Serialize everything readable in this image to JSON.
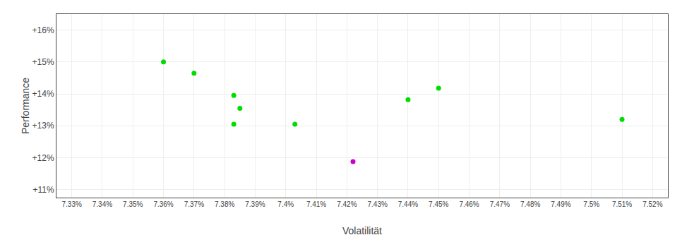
{
  "chart_data": {
    "type": "scatter",
    "xlabel": "Volatilität",
    "ylabel": "Performance",
    "series": [
      {
        "color": "#00dd00",
        "x": [
          7.36,
          7.37,
          7.383,
          7.385,
          7.383,
          7.403,
          7.44,
          7.45,
          7.51
        ],
        "values": [
          15.0,
          14.65,
          13.95,
          13.55,
          13.05,
          13.05,
          13.82,
          14.18,
          13.2
        ]
      },
      {
        "color": "#cc00cc",
        "x": [
          7.422
        ],
        "values": [
          11.88
        ]
      }
    ],
    "xlim": [
      7.325,
      7.525
    ],
    "ylim": [
      10.75,
      16.5
    ],
    "xticks": [
      {
        "value": 7.33,
        "label": "7.33%"
      },
      {
        "value": 7.34,
        "label": "7.34%"
      },
      {
        "value": 7.35,
        "label": "7.35%"
      },
      {
        "value": 7.36,
        "label": "7.36%"
      },
      {
        "value": 7.37,
        "label": "7.37%"
      },
      {
        "value": 7.38,
        "label": "7.38%"
      },
      {
        "value": 7.39,
        "label": "7.39%"
      },
      {
        "value": 7.4,
        "label": "7.4%"
      },
      {
        "value": 7.41,
        "label": "7.41%"
      },
      {
        "value": 7.42,
        "label": "7.42%"
      },
      {
        "value": 7.43,
        "label": "7.43%"
      },
      {
        "value": 7.44,
        "label": "7.44%"
      },
      {
        "value": 7.45,
        "label": "7.45%"
      },
      {
        "value": 7.46,
        "label": "7.46%"
      },
      {
        "value": 7.47,
        "label": "7.47%"
      },
      {
        "value": 7.48,
        "label": "7.48%"
      },
      {
        "value": 7.49,
        "label": "7.49%"
      },
      {
        "value": 7.5,
        "label": "7.5%"
      },
      {
        "value": 7.51,
        "label": "7.51%"
      },
      {
        "value": 7.52,
        "label": "7.52%"
      }
    ],
    "yticks": [
      {
        "value": 11.0,
        "label": "+11%"
      },
      {
        "value": 12.0,
        "label": "+12%"
      },
      {
        "value": 13.0,
        "label": "+13%"
      },
      {
        "value": 14.0,
        "label": "+14%"
      },
      {
        "value": 15.0,
        "label": "+15%"
      },
      {
        "value": 16.0,
        "label": "+16%"
      }
    ],
    "grid": true
  }
}
